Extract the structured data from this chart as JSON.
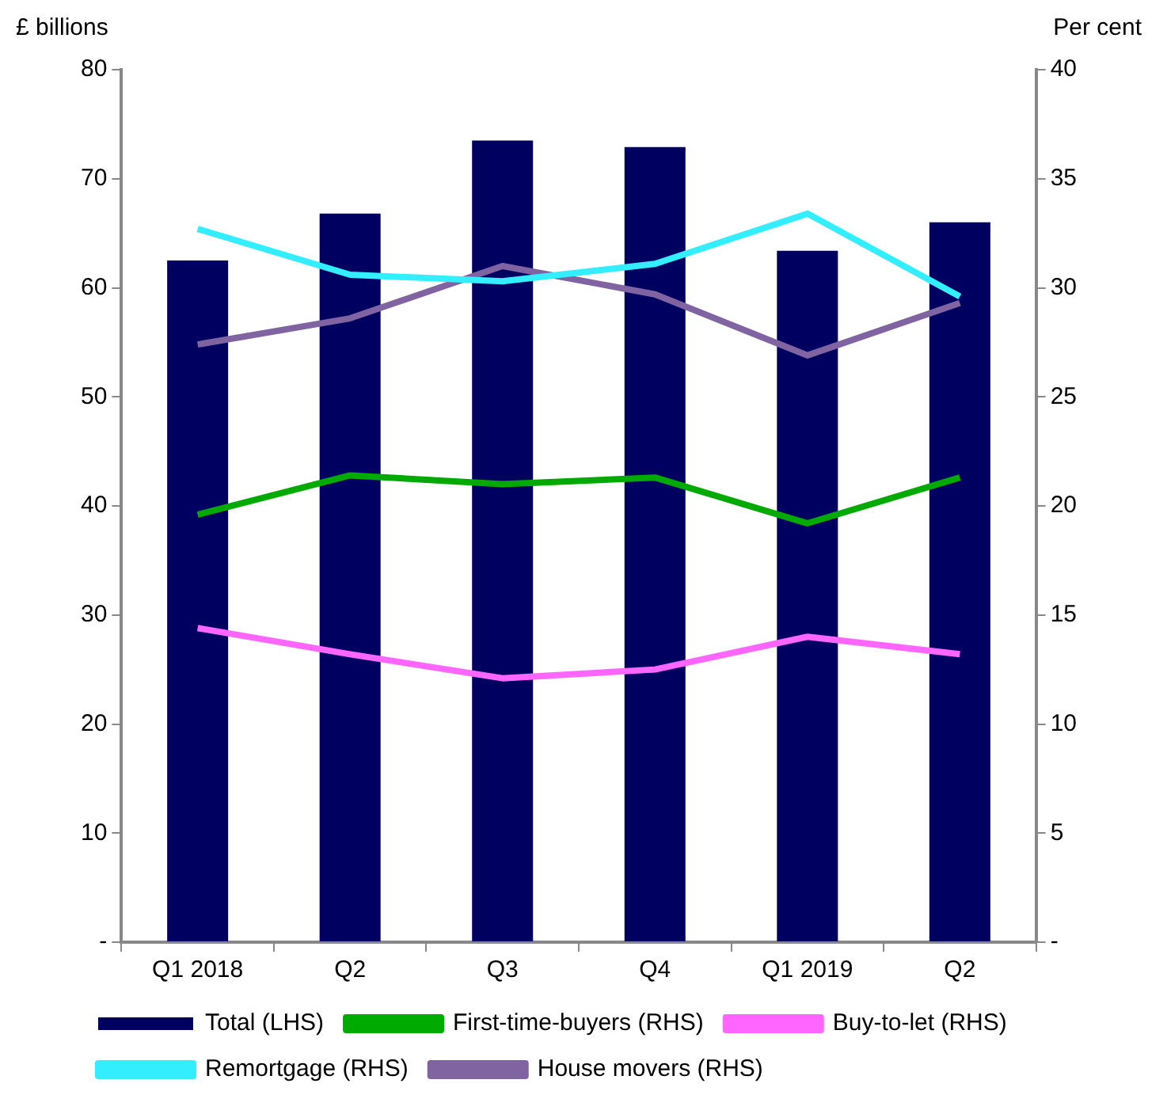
{
  "chart_data": {
    "type": "bar",
    "ylabel": "£ billions",
    "y2label": "Per cent",
    "categories": [
      "Q1 2018",
      "Q2",
      "Q3",
      "Q4",
      "Q1 2019",
      "Q2"
    ],
    "series": [
      {
        "name": "Total (LHS)",
        "color": "#000060",
        "values": [
          62.5,
          66.8,
          73.5,
          72.9,
          63.4,
          66.0
        ]
      },
      {
        "name": "First-time-buyers (RHS)",
        "type": "line",
        "axis": "y2",
        "color": "#00aa00",
        "values": [
          19.6,
          21.4,
          21.0,
          21.3,
          19.2,
          21.3
        ]
      },
      {
        "name": "Buy-to-let (RHS)",
        "type": "line",
        "axis": "y2",
        "color": "#ff66ff",
        "values": [
          14.4,
          13.2,
          12.1,
          12.5,
          14.0,
          13.2
        ]
      },
      {
        "name": "Remortgage (RHS)",
        "type": "line",
        "axis": "y2",
        "color": "#33eeff",
        "values": [
          32.7,
          30.6,
          30.3,
          31.1,
          33.4,
          29.6
        ]
      },
      {
        "name": "House movers (RHS)",
        "type": "line",
        "axis": "y2",
        "color": "#8064a2",
        "values": [
          27.4,
          28.6,
          31.0,
          29.7,
          26.9,
          29.3
        ]
      }
    ],
    "ylim": [
      0,
      80
    ],
    "yticks": [
      {
        "value": 0,
        "label": "-"
      },
      10,
      20,
      30,
      40,
      50,
      60,
      70,
      80
    ],
    "y2lim": [
      0,
      40
    ],
    "y2ticks": [
      {
        "value": 0,
        "label": "-"
      },
      5,
      10,
      15,
      20,
      25,
      30,
      35,
      40
    ],
    "grid": false,
    "legend": "bottom",
    "marker": "none"
  }
}
